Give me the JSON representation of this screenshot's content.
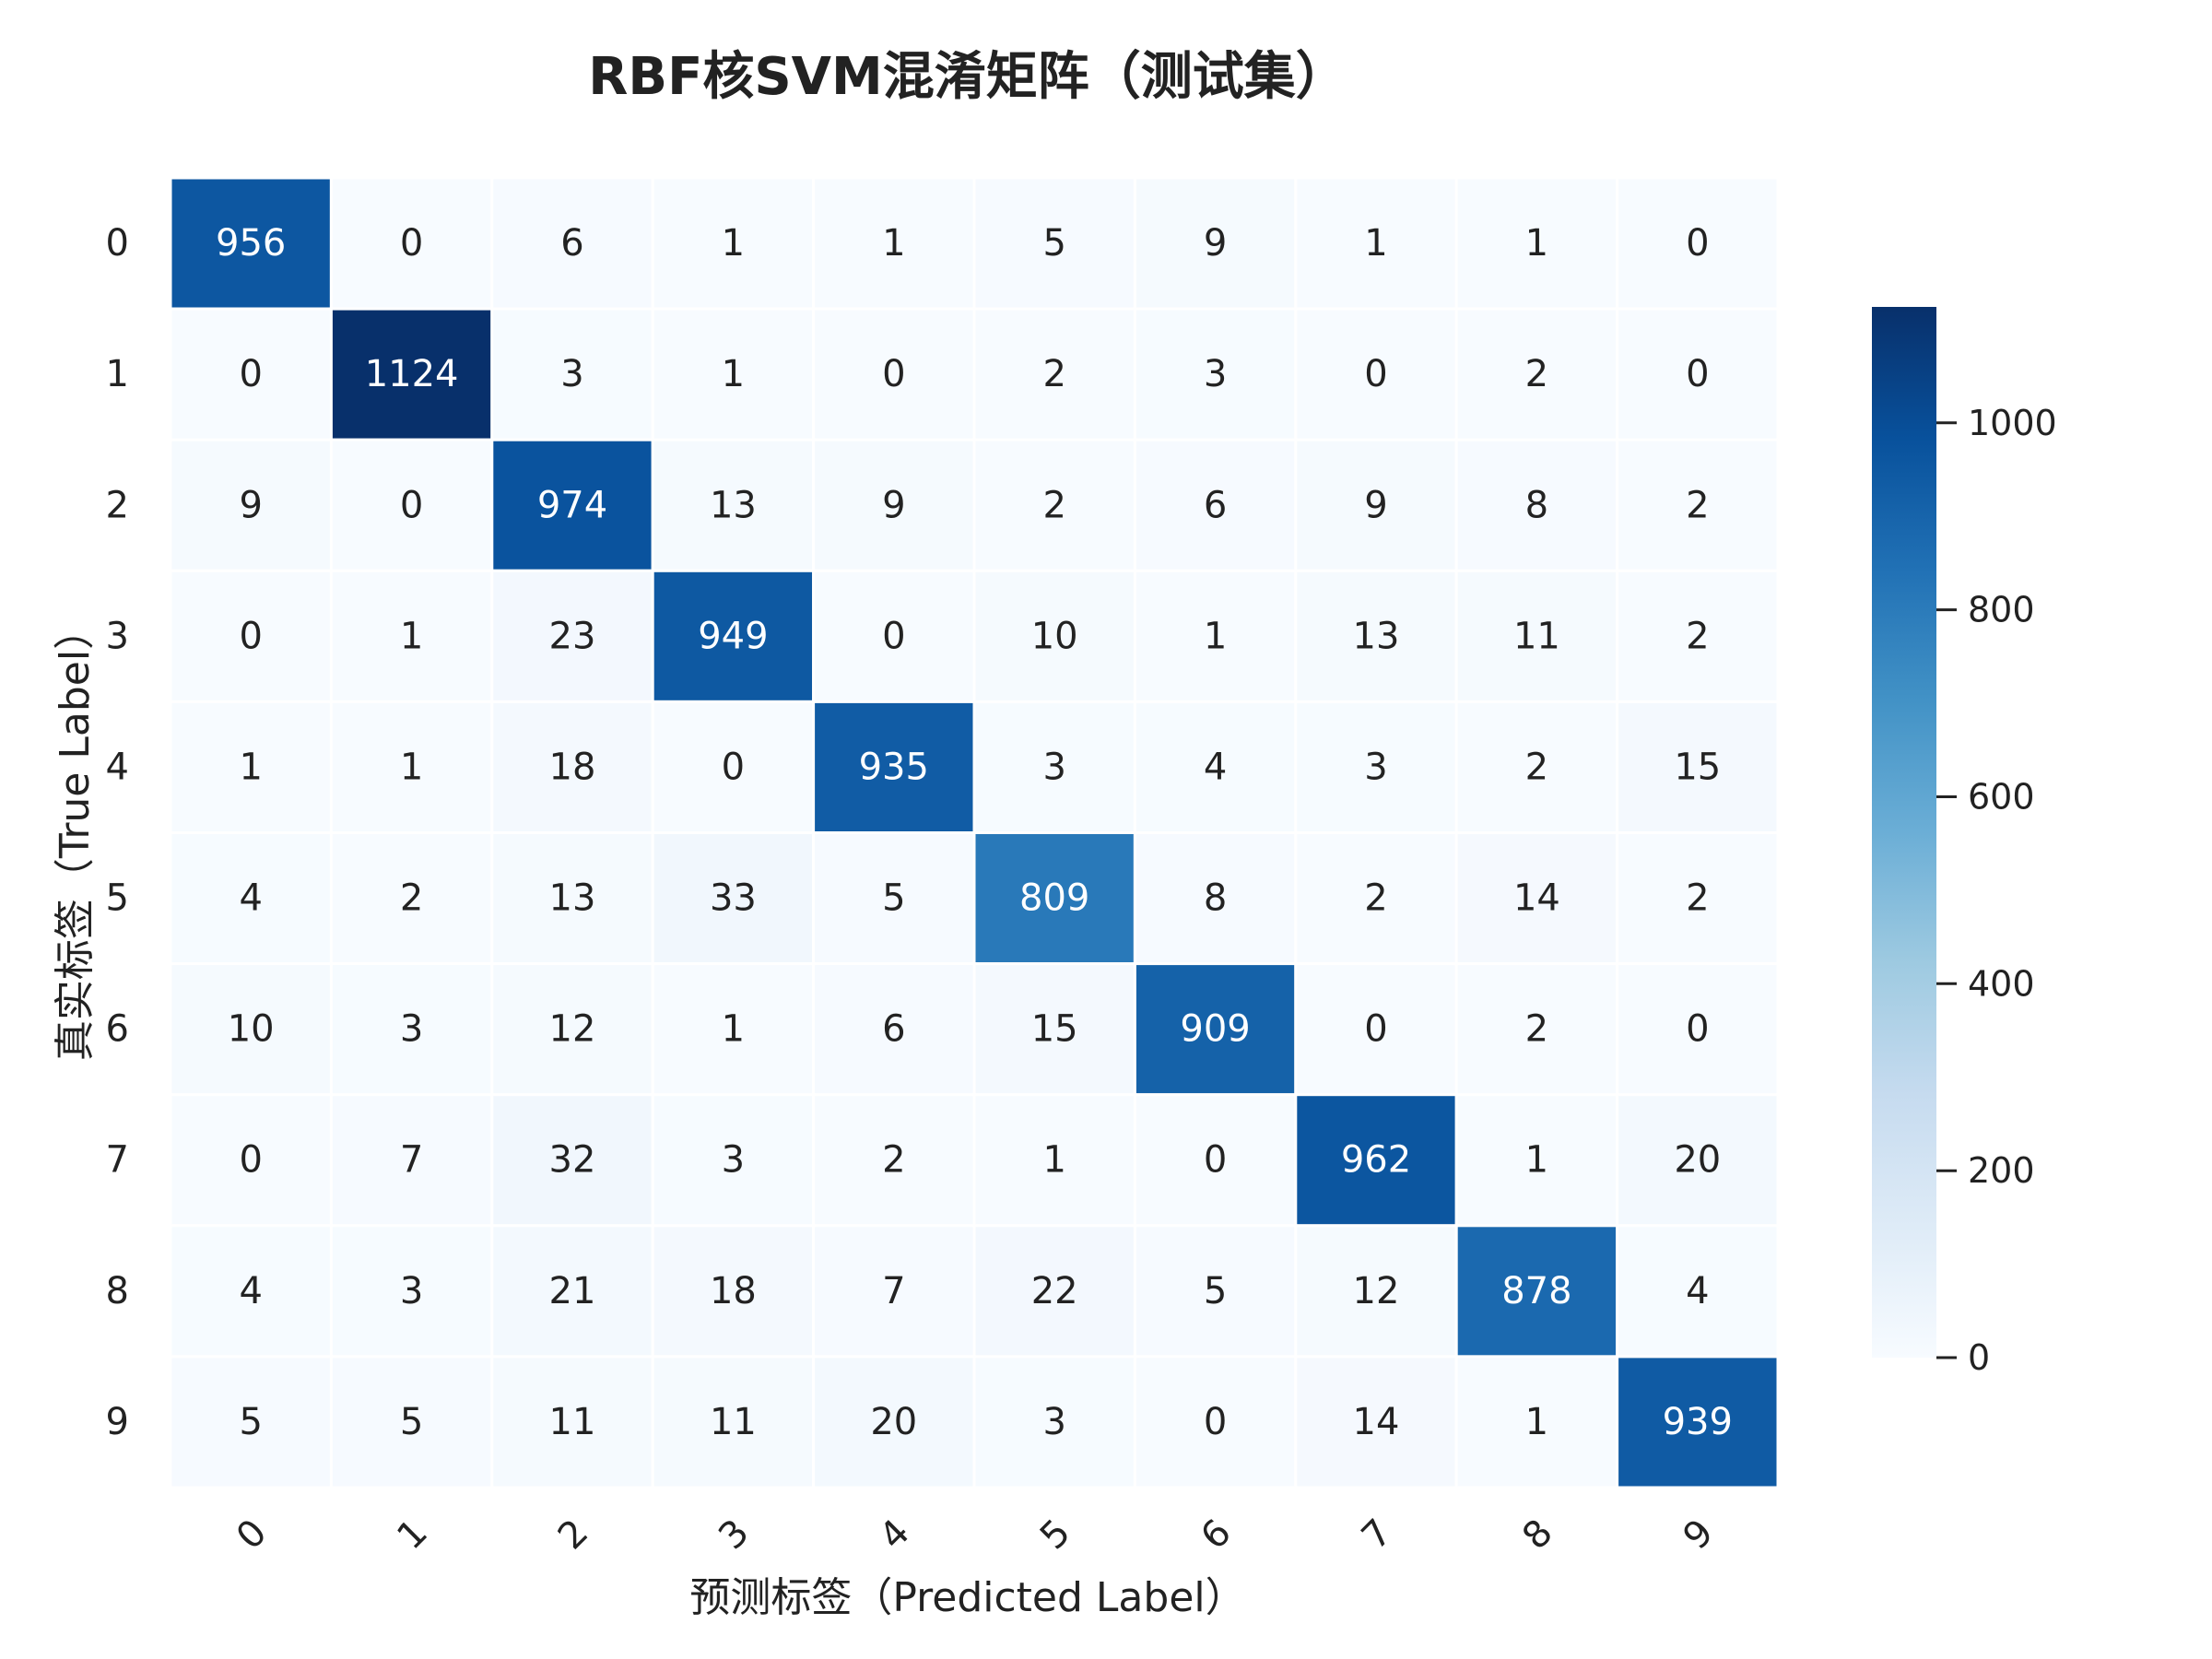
{
  "chart_data": {
    "type": "heatmap",
    "title": "RBF核SVM混淆矩阵（测试集）",
    "xlabel": "预测标签（Predicted Label）",
    "ylabel": "真实标签（True Label）",
    "x_categories": [
      "0",
      "1",
      "2",
      "3",
      "4",
      "5",
      "6",
      "7",
      "8",
      "9"
    ],
    "y_categories": [
      "0",
      "1",
      "2",
      "3",
      "4",
      "5",
      "6",
      "7",
      "8",
      "9"
    ],
    "values": [
      [
        956,
        0,
        6,
        1,
        1,
        5,
        9,
        1,
        1,
        0
      ],
      [
        0,
        1124,
        3,
        1,
        0,
        2,
        3,
        0,
        2,
        0
      ],
      [
        9,
        0,
        974,
        13,
        9,
        2,
        6,
        9,
        8,
        2
      ],
      [
        0,
        1,
        23,
        949,
        0,
        10,
        1,
        13,
        11,
        2
      ],
      [
        1,
        1,
        18,
        0,
        935,
        3,
        4,
        3,
        2,
        15
      ],
      [
        4,
        2,
        13,
        33,
        5,
        809,
        8,
        2,
        14,
        2
      ],
      [
        10,
        3,
        12,
        1,
        6,
        15,
        909,
        0,
        2,
        0
      ],
      [
        0,
        7,
        32,
        3,
        2,
        1,
        0,
        962,
        1,
        20
      ],
      [
        4,
        3,
        21,
        18,
        7,
        22,
        5,
        12,
        878,
        4
      ],
      [
        5,
        5,
        11,
        11,
        20,
        3,
        0,
        14,
        1,
        939
      ]
    ],
    "colormap": "Blues",
    "colorbar": {
      "min": 0,
      "max": 1124,
      "ticks": [
        0,
        200,
        400,
        600,
        800,
        1000
      ]
    },
    "colors": {
      "text_dark": "#222222",
      "text_light": "#ffffff",
      "gridline": "#ffffff"
    }
  }
}
